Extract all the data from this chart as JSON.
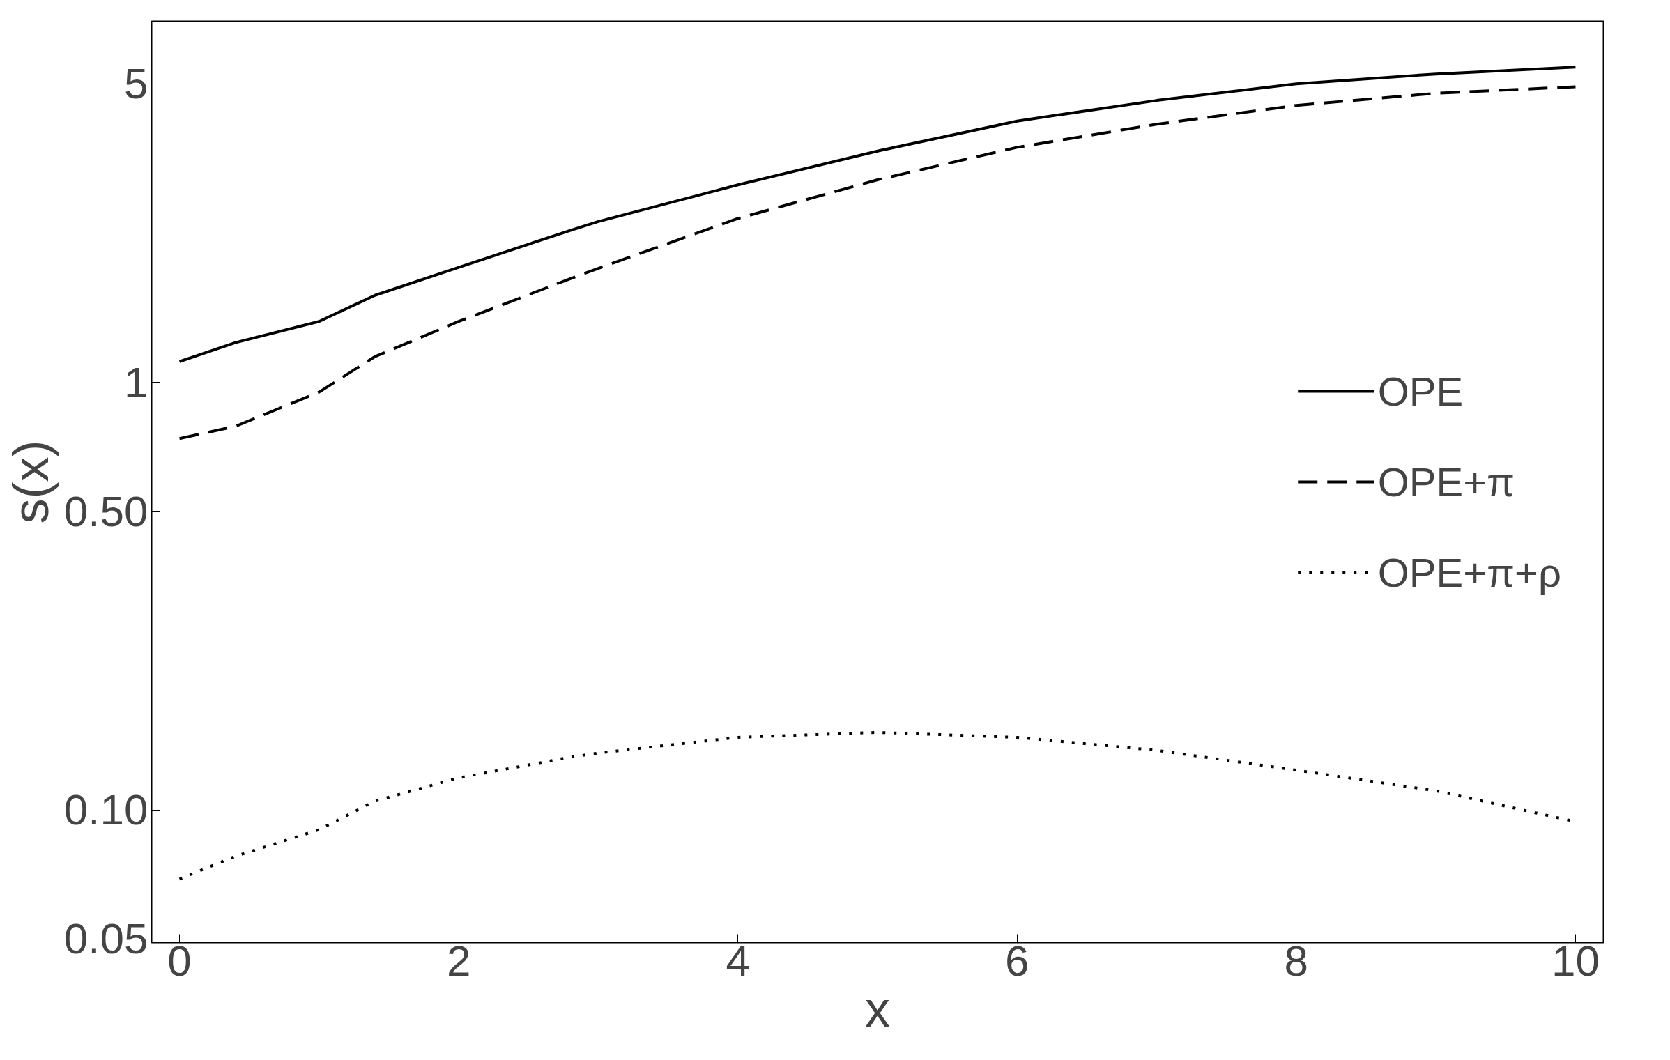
{
  "chart_data": {
    "type": "line",
    "xlabel": "x",
    "ylabel": "s(x)",
    "log": "y",
    "xlim": [
      -0.2,
      10.2
    ],
    "ylim": [
      0.049,
      7
    ],
    "xticks": [
      0,
      2,
      4,
      6,
      8,
      10
    ],
    "yticks": [
      {
        "value": 0.05,
        "label": "0.05"
      },
      {
        "value": 0.1,
        "label": "0.10"
      },
      {
        "value": 0.5,
        "label": "0.50"
      },
      1,
      5
    ],
    "grid": false,
    "legend": "right",
    "marker": "none",
    "x": [
      0,
      0.4,
      1,
      1.4,
      2,
      2.8,
      3,
      4,
      5,
      6,
      7,
      8,
      9,
      10
    ],
    "series": [
      {
        "name": "OPE",
        "color": "#000000",
        "line_style": "solid",
        "values": [
          1.12,
          1.24,
          1.39,
          1.6,
          1.86,
          2.27,
          2.38,
          2.9,
          3.48,
          4.09,
          4.57,
          5.0,
          5.27,
          5.47
        ]
      },
      {
        "name": "OPE+π",
        "color": "#000000",
        "line_style": "dashed",
        "values": [
          0.74,
          0.79,
          0.95,
          1.15,
          1.39,
          1.75,
          1.85,
          2.42,
          2.98,
          3.55,
          4.02,
          4.45,
          4.75,
          4.92
        ]
      },
      {
        "name": "OPE+π+ρ",
        "color": "#000000",
        "line_style": "dotted",
        "values": [
          0.069,
          0.078,
          0.09,
          0.105,
          0.119,
          0.133,
          0.136,
          0.148,
          0.152,
          0.148,
          0.138,
          0.124,
          0.111,
          0.094
        ]
      }
    ]
  }
}
